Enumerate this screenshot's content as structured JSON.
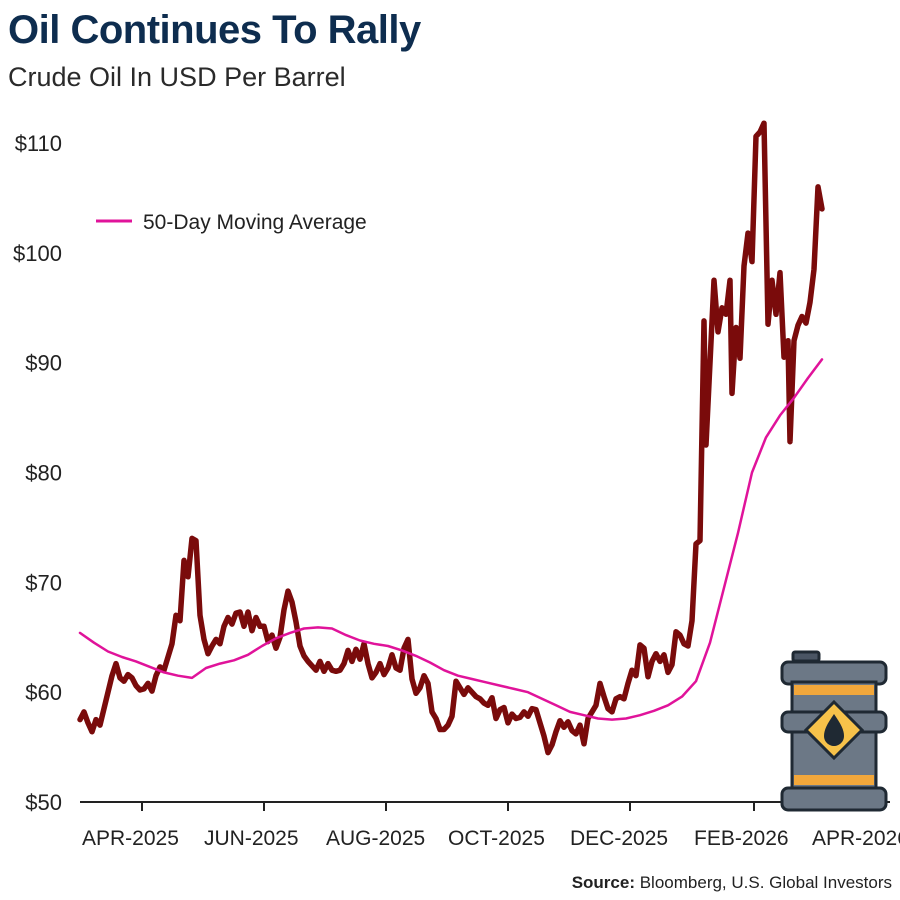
{
  "title": "Oil Continues To Rally",
  "subtitle": "Crude Oil In USD Per Barrel",
  "source_label": "Source:",
  "source_text": "Bloomberg, U.S. Global Investors",
  "colors": {
    "price": "#7a0b0b",
    "moving_average": "#e0139a",
    "title": "#0e2d4f"
  },
  "icon": "oil-barrel-icon",
  "chart_data": {
    "type": "line",
    "title": "Oil Continues To Rally",
    "subtitle": "Crude Oil In USD Per Barrel",
    "ylim": [
      50,
      112
    ],
    "xlim": [
      "2025-03-01",
      "2026-04-10"
    ],
    "grid": false,
    "legend_position": "top-left",
    "y_ticks": [
      {
        "value": 50,
        "label": "$50"
      },
      {
        "value": 60,
        "label": "$60"
      },
      {
        "value": 70,
        "label": "$70"
      },
      {
        "value": 80,
        "label": "$80"
      },
      {
        "value": 90,
        "label": "$90"
      },
      {
        "value": 100,
        "label": "$100"
      },
      {
        "value": 110,
        "label": "$110"
      }
    ],
    "x_ticks": [
      {
        "date": "2025-04-01",
        "label": "APR-2025"
      },
      {
        "date": "2025-06-01",
        "label": "JUN-2025"
      },
      {
        "date": "2025-08-01",
        "label": "AUG-2025"
      },
      {
        "date": "2025-10-01",
        "label": "OCT-2025"
      },
      {
        "date": "2025-12-01",
        "label": "DEC-2025"
      },
      {
        "date": "2026-02-01",
        "label": "FEB-2026"
      },
      {
        "date": "2026-04-01",
        "label": "APR-2026"
      }
    ],
    "legend": [
      {
        "series": "50-Day Moving Average",
        "label": "50-Day Moving Average"
      }
    ],
    "series": [
      {
        "name": "Crude Oil",
        "data": [
          [
            "2025-03-01",
            57.5
          ],
          [
            "2025-03-03",
            58.2
          ],
          [
            "2025-03-05",
            57.2
          ],
          [
            "2025-03-07",
            56.4
          ],
          [
            "2025-03-09",
            57.5
          ],
          [
            "2025-03-11",
            57.0
          ],
          [
            "2025-03-13",
            58.5
          ],
          [
            "2025-03-15",
            60.0
          ],
          [
            "2025-03-17",
            61.5
          ],
          [
            "2025-03-19",
            62.6
          ],
          [
            "2025-03-21",
            61.3
          ],
          [
            "2025-03-23",
            61.0
          ],
          [
            "2025-03-25",
            61.6
          ],
          [
            "2025-03-27",
            61.3
          ],
          [
            "2025-03-29",
            60.6
          ],
          [
            "2025-03-31",
            60.2
          ],
          [
            "2025-04-02",
            60.3
          ],
          [
            "2025-04-04",
            60.8
          ],
          [
            "2025-04-06",
            60.1
          ],
          [
            "2025-04-08",
            61.5
          ],
          [
            "2025-04-10",
            62.3
          ],
          [
            "2025-04-12",
            62.0
          ],
          [
            "2025-04-14",
            63.2
          ],
          [
            "2025-04-16",
            64.4
          ],
          [
            "2025-04-18",
            67.0
          ],
          [
            "2025-04-20",
            66.5
          ],
          [
            "2025-04-22",
            72.0
          ],
          [
            "2025-04-24",
            70.5
          ],
          [
            "2025-04-26",
            74.0
          ],
          [
            "2025-04-28",
            73.8
          ],
          [
            "2025-04-30",
            67.0
          ],
          [
            "2025-05-02",
            64.8
          ],
          [
            "2025-05-04",
            63.5
          ],
          [
            "2025-05-06",
            64.2
          ],
          [
            "2025-05-08",
            64.8
          ],
          [
            "2025-05-10",
            64.4
          ],
          [
            "2025-05-12",
            66.0
          ],
          [
            "2025-05-14",
            66.8
          ],
          [
            "2025-05-16",
            66.2
          ],
          [
            "2025-05-18",
            67.2
          ],
          [
            "2025-05-20",
            67.3
          ],
          [
            "2025-05-22",
            66.0
          ],
          [
            "2025-05-24",
            67.3
          ],
          [
            "2025-05-26",
            65.6
          ],
          [
            "2025-05-28",
            66.8
          ],
          [
            "2025-05-30",
            66.0
          ],
          [
            "2025-06-01",
            66.0
          ],
          [
            "2025-06-03",
            64.6
          ],
          [
            "2025-06-05",
            65.2
          ],
          [
            "2025-06-07",
            64.0
          ],
          [
            "2025-06-09",
            65.0
          ],
          [
            "2025-06-11",
            67.5
          ],
          [
            "2025-06-13",
            69.2
          ],
          [
            "2025-06-15",
            68.2
          ],
          [
            "2025-06-17",
            66.4
          ],
          [
            "2025-06-19",
            64.2
          ],
          [
            "2025-06-21",
            63.3
          ],
          [
            "2025-06-23",
            62.8
          ],
          [
            "2025-06-25",
            62.4
          ],
          [
            "2025-06-27",
            62.0
          ],
          [
            "2025-06-29",
            62.8
          ],
          [
            "2025-07-01",
            61.9
          ],
          [
            "2025-07-03",
            62.6
          ],
          [
            "2025-07-05",
            62.0
          ],
          [
            "2025-07-07",
            61.9
          ],
          [
            "2025-07-09",
            62.0
          ],
          [
            "2025-07-11",
            62.6
          ],
          [
            "2025-07-13",
            63.8
          ],
          [
            "2025-07-15",
            62.8
          ],
          [
            "2025-07-17",
            63.9
          ],
          [
            "2025-07-19",
            63.0
          ],
          [
            "2025-07-21",
            64.4
          ],
          [
            "2025-07-23",
            62.6
          ],
          [
            "2025-07-25",
            61.3
          ],
          [
            "2025-07-27",
            61.8
          ],
          [
            "2025-07-29",
            62.6
          ],
          [
            "2025-07-31",
            61.6
          ],
          [
            "2025-08-02",
            62.2
          ],
          [
            "2025-08-04",
            63.4
          ],
          [
            "2025-08-06",
            62.2
          ],
          [
            "2025-08-08",
            62.0
          ],
          [
            "2025-08-10",
            64.0
          ],
          [
            "2025-08-12",
            64.8
          ],
          [
            "2025-08-14",
            61.2
          ],
          [
            "2025-08-16",
            59.9
          ],
          [
            "2025-08-18",
            60.4
          ],
          [
            "2025-08-20",
            61.5
          ],
          [
            "2025-08-22",
            60.8
          ],
          [
            "2025-08-24",
            58.2
          ],
          [
            "2025-08-26",
            57.6
          ],
          [
            "2025-08-28",
            56.6
          ],
          [
            "2025-08-30",
            56.6
          ],
          [
            "2025-09-01",
            57.0
          ],
          [
            "2025-09-03",
            57.8
          ],
          [
            "2025-09-05",
            61.0
          ],
          [
            "2025-09-07",
            60.4
          ],
          [
            "2025-09-09",
            59.8
          ],
          [
            "2025-09-11",
            60.4
          ],
          [
            "2025-09-13",
            60.0
          ],
          [
            "2025-09-15",
            59.6
          ],
          [
            "2025-09-17",
            59.4
          ],
          [
            "2025-09-19",
            59.0
          ],
          [
            "2025-09-21",
            58.8
          ],
          [
            "2025-09-23",
            59.5
          ],
          [
            "2025-09-25",
            57.6
          ],
          [
            "2025-09-27",
            58.4
          ],
          [
            "2025-09-29",
            58.6
          ],
          [
            "2025-10-01",
            57.2
          ],
          [
            "2025-10-03",
            58.0
          ],
          [
            "2025-10-05",
            57.6
          ],
          [
            "2025-10-07",
            57.7
          ],
          [
            "2025-10-09",
            58.2
          ],
          [
            "2025-10-11",
            57.8
          ],
          [
            "2025-10-13",
            58.5
          ],
          [
            "2025-10-15",
            58.4
          ],
          [
            "2025-10-17",
            57.2
          ],
          [
            "2025-10-19",
            56.0
          ],
          [
            "2025-10-21",
            54.5
          ],
          [
            "2025-10-23",
            55.2
          ],
          [
            "2025-10-25",
            56.4
          ],
          [
            "2025-10-27",
            57.4
          ],
          [
            "2025-10-29",
            56.8
          ],
          [
            "2025-10-31",
            57.3
          ],
          [
            "2025-11-02",
            56.5
          ],
          [
            "2025-11-04",
            56.2
          ],
          [
            "2025-11-06",
            57.0
          ],
          [
            "2025-11-08",
            55.3
          ],
          [
            "2025-11-10",
            57.6
          ],
          [
            "2025-11-12",
            58.2
          ],
          [
            "2025-11-14",
            58.8
          ],
          [
            "2025-11-16",
            60.8
          ],
          [
            "2025-11-18",
            59.6
          ],
          [
            "2025-11-20",
            58.5
          ],
          [
            "2025-11-22",
            58.2
          ],
          [
            "2025-11-24",
            59.4
          ],
          [
            "2025-11-26",
            59.6
          ],
          [
            "2025-11-28",
            59.4
          ],
          [
            "2025-11-30",
            60.8
          ],
          [
            "2025-12-02",
            62.0
          ],
          [
            "2025-12-04",
            61.5
          ],
          [
            "2025-12-06",
            64.3
          ],
          [
            "2025-12-08",
            64.0
          ],
          [
            "2025-12-10",
            61.4
          ],
          [
            "2025-12-12",
            62.8
          ],
          [
            "2025-12-14",
            63.5
          ],
          [
            "2025-12-16",
            62.8
          ],
          [
            "2025-12-18",
            63.4
          ],
          [
            "2025-12-20",
            61.8
          ],
          [
            "2025-12-22",
            62.5
          ],
          [
            "2025-12-24",
            65.5
          ],
          [
            "2025-12-26",
            65.2
          ],
          [
            "2025-12-28",
            64.4
          ],
          [
            "2025-12-30",
            64.2
          ],
          [
            "2026-01-01",
            66.5
          ],
          [
            "2026-01-03",
            73.5
          ],
          [
            "2026-01-05",
            73.8
          ],
          [
            "2026-01-07",
            93.8
          ],
          [
            "2026-01-08",
            82.5
          ],
          [
            "2026-01-10",
            90.0
          ],
          [
            "2026-01-12",
            97.5
          ],
          [
            "2026-01-14",
            92.8
          ],
          [
            "2026-01-16",
            95.0
          ],
          [
            "2026-01-18",
            94.4
          ],
          [
            "2026-01-20",
            97.5
          ],
          [
            "2026-01-21",
            87.2
          ],
          [
            "2026-01-23",
            93.2
          ],
          [
            "2026-01-25",
            90.4
          ],
          [
            "2026-01-27",
            98.8
          ],
          [
            "2026-01-29",
            101.8
          ],
          [
            "2026-01-31",
            99.2
          ],
          [
            "2026-02-02",
            110.6
          ],
          [
            "2026-02-04",
            111.0
          ],
          [
            "2026-02-06",
            111.8
          ],
          [
            "2026-02-08",
            93.5
          ],
          [
            "2026-02-10",
            97.5
          ],
          [
            "2026-02-12",
            94.4
          ],
          [
            "2026-02-14",
            98.2
          ],
          [
            "2026-02-16",
            90.5
          ],
          [
            "2026-02-18",
            92.0
          ],
          [
            "2026-02-19",
            82.8
          ],
          [
            "2026-02-21",
            92.0
          ],
          [
            "2026-02-23",
            93.4
          ],
          [
            "2026-02-25",
            94.2
          ],
          [
            "2026-02-27",
            93.6
          ],
          [
            "2026-03-01",
            95.5
          ],
          [
            "2026-03-03",
            98.5
          ],
          [
            "2026-03-05",
            106.0
          ],
          [
            "2026-03-07",
            104.0
          ]
        ]
      },
      {
        "name": "50-Day Moving Average",
        "data": [
          [
            "2025-03-01",
            65.4
          ],
          [
            "2025-03-08",
            64.5
          ],
          [
            "2025-03-15",
            63.7
          ],
          [
            "2025-03-22",
            63.2
          ],
          [
            "2025-03-29",
            62.8
          ],
          [
            "2025-04-05",
            62.3
          ],
          [
            "2025-04-12",
            61.8
          ],
          [
            "2025-04-19",
            61.5
          ],
          [
            "2025-04-26",
            61.3
          ],
          [
            "2025-05-03",
            62.2
          ],
          [
            "2025-05-10",
            62.6
          ],
          [
            "2025-05-17",
            62.9
          ],
          [
            "2025-05-24",
            63.4
          ],
          [
            "2025-05-31",
            64.2
          ],
          [
            "2025-06-07",
            64.9
          ],
          [
            "2025-06-14",
            65.4
          ],
          [
            "2025-06-21",
            65.8
          ],
          [
            "2025-06-28",
            65.9
          ],
          [
            "2025-07-05",
            65.8
          ],
          [
            "2025-07-12",
            65.2
          ],
          [
            "2025-07-19",
            64.7
          ],
          [
            "2025-07-26",
            64.4
          ],
          [
            "2025-08-02",
            64.2
          ],
          [
            "2025-08-09",
            63.8
          ],
          [
            "2025-08-16",
            63.3
          ],
          [
            "2025-08-23",
            62.7
          ],
          [
            "2025-08-30",
            62.0
          ],
          [
            "2025-09-06",
            61.5
          ],
          [
            "2025-09-13",
            61.2
          ],
          [
            "2025-09-20",
            60.9
          ],
          [
            "2025-09-27",
            60.6
          ],
          [
            "2025-10-04",
            60.3
          ],
          [
            "2025-10-11",
            60.0
          ],
          [
            "2025-10-18",
            59.4
          ],
          [
            "2025-10-25",
            58.8
          ],
          [
            "2025-11-01",
            58.2
          ],
          [
            "2025-11-08",
            57.9
          ],
          [
            "2025-11-15",
            57.6
          ],
          [
            "2025-11-22",
            57.5
          ],
          [
            "2025-11-29",
            57.6
          ],
          [
            "2025-12-06",
            57.9
          ],
          [
            "2025-12-13",
            58.3
          ],
          [
            "2025-12-20",
            58.8
          ],
          [
            "2025-12-27",
            59.6
          ],
          [
            "2026-01-03",
            61.0
          ],
          [
            "2026-01-10",
            64.5
          ],
          [
            "2026-01-17",
            69.5
          ],
          [
            "2026-01-24",
            74.5
          ],
          [
            "2026-01-31",
            80.0
          ],
          [
            "2026-02-07",
            83.2
          ],
          [
            "2026-02-14",
            85.2
          ],
          [
            "2026-02-21",
            86.8
          ],
          [
            "2026-02-28",
            88.6
          ],
          [
            "2026-03-07",
            90.3
          ]
        ]
      }
    ]
  }
}
